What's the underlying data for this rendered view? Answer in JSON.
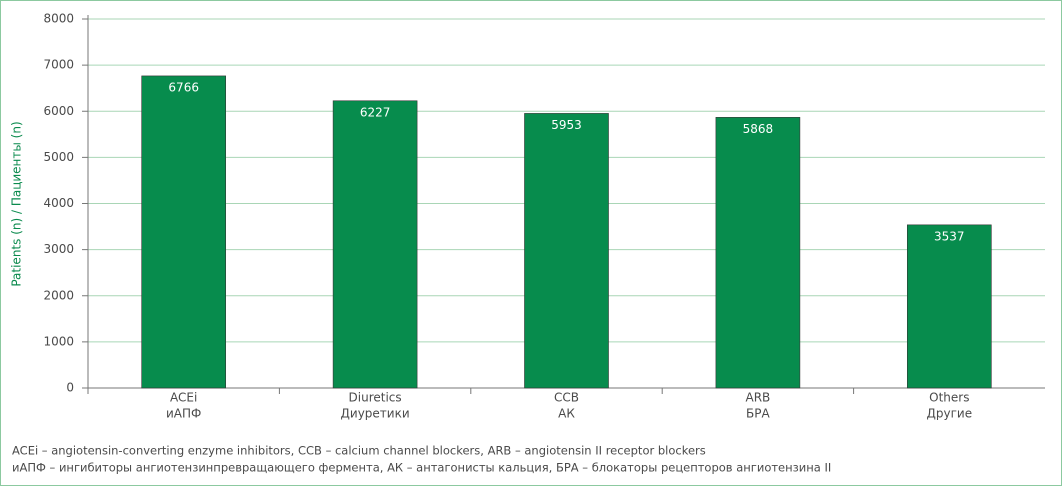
{
  "chart_data": {
    "type": "bar",
    "y_label": "Patients (n) / Пациенты (n)",
    "categories": [
      [
        "ACEi",
        "иАПФ"
      ],
      [
        "Diuretics",
        "Диуретики"
      ],
      [
        "CCB",
        "АК"
      ],
      [
        "ARB",
        "БРА"
      ],
      [
        "Others",
        "Другие"
      ]
    ],
    "values": [
      6766,
      6227,
      5953,
      5868,
      3537
    ],
    "color": "#078c4d",
    "ylim": [
      0,
      8000
    ],
    "yticks": [
      0,
      1000,
      2000,
      3000,
      4000,
      5000,
      6000,
      7000,
      8000
    ],
    "grid": true,
    "footnotes": [
      "ACEi – angiotensin-converting enzyme inhibitors, CCB – calcium channel blockers, ARB – angiotensin II receptor blockers",
      "иАПФ – ингибиторы ангиотензинпревращающего фермента, АК – антагонисты кальция, БРА – блокаторы рецепторов ангиотензина II"
    ]
  }
}
